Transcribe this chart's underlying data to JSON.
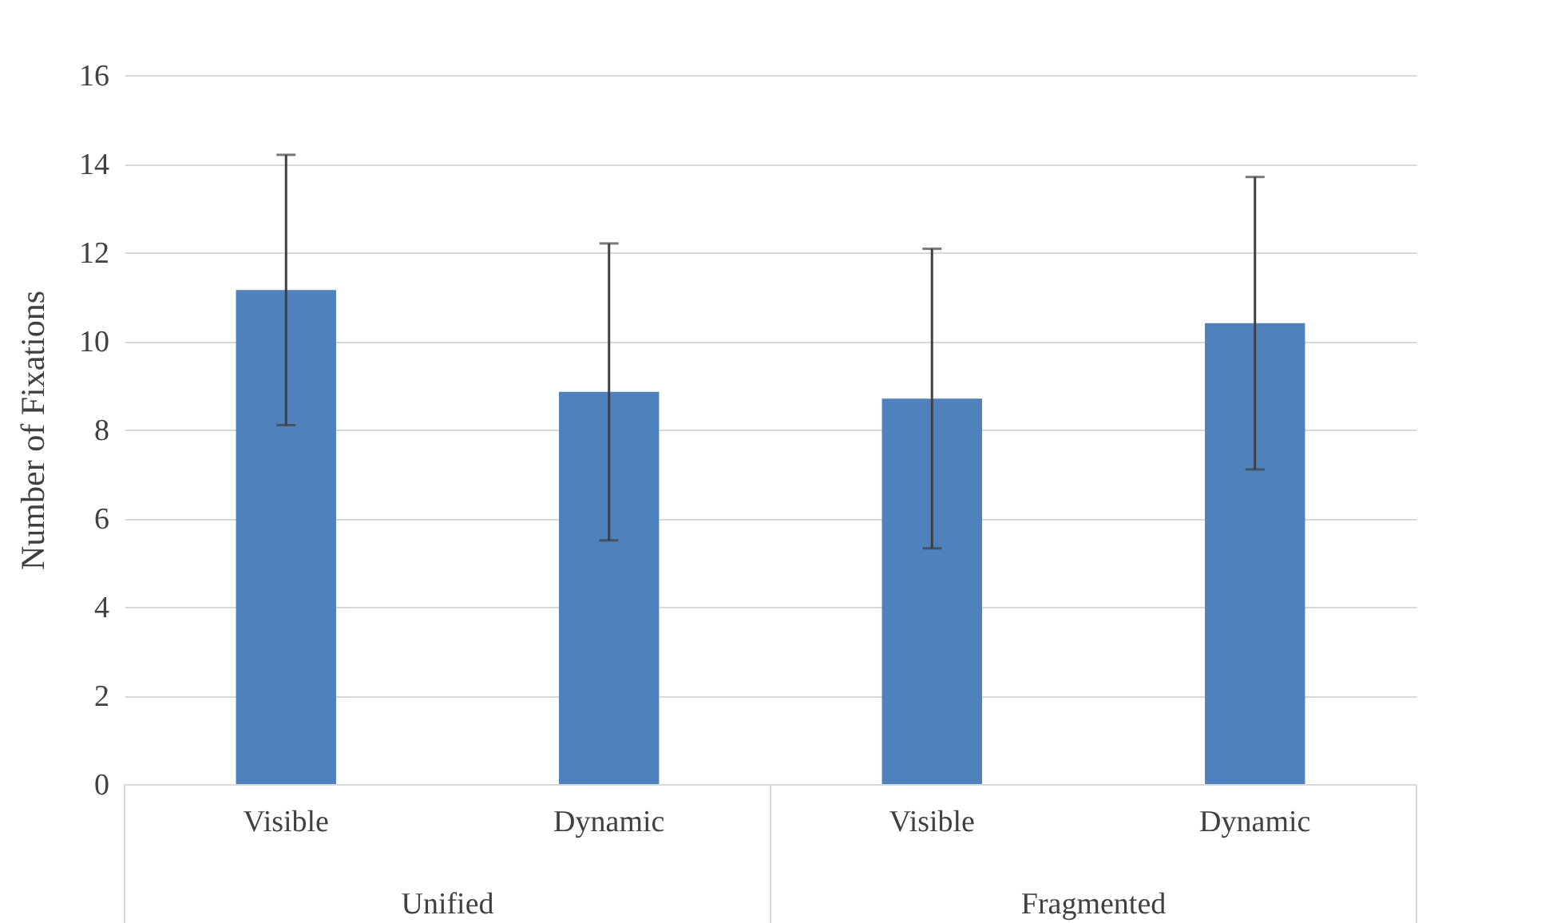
{
  "chart_data": {
    "type": "bar",
    "ylabel": "Number of Fixations",
    "categories": [
      "Visible",
      "Dynamic",
      "Visible",
      "Dynamic"
    ],
    "values": [
      11.15,
      8.85,
      8.7,
      10.4
    ],
    "errors": [
      3.05,
      3.35,
      3.38,
      3.3
    ],
    "color": "#4f81bd",
    "ylim": [
      0,
      16
    ],
    "yticks": [
      0,
      2,
      4,
      6,
      8,
      10,
      12,
      14,
      16
    ],
    "grid": "y",
    "annotations": [
      "Unified",
      "Fragmented"
    ]
  }
}
